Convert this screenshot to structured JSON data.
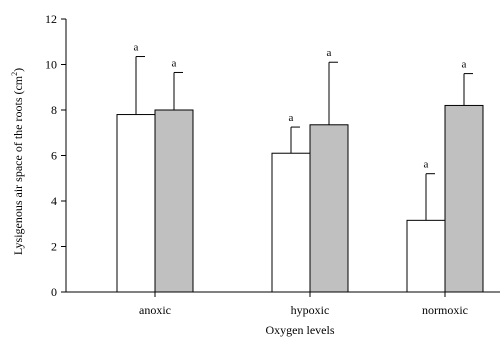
{
  "chart_data": {
    "type": "bar",
    "title": "",
    "xlabel": "Oxygen levels",
    "ylabel": "Lysigenous air space of the roots (cm",
    "ylabel_sup": "2",
    "ylabel_end": ")",
    "ylim": [
      0,
      12
    ],
    "yticks": [
      0,
      2,
      4,
      6,
      8,
      10,
      12
    ],
    "categories": [
      "anoxic",
      "hypoxic",
      "normoxic"
    ],
    "series": [
      {
        "fill": "#ffffff",
        "values": [
          7.8,
          6.1,
          3.15
        ],
        "errors": [
          2.55,
          1.15,
          2.05
        ],
        "sig": [
          "a",
          "a",
          "a"
        ]
      },
      {
        "fill": "#c0c0c0",
        "values": [
          8.0,
          7.35,
          8.2
        ],
        "errors": [
          1.65,
          2.75,
          1.4
        ],
        "sig": [
          "a",
          "a",
          "a"
        ]
      }
    ],
    "grid": false,
    "legend": "none"
  }
}
